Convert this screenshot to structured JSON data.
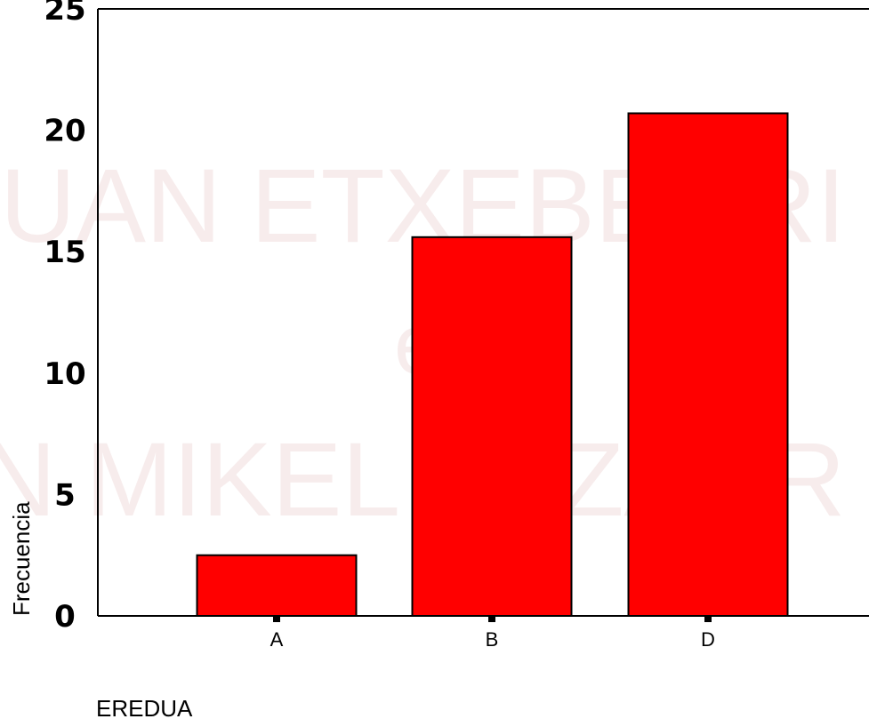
{
  "chart_data": {
    "type": "bar",
    "title": "",
    "xlabel": "EREDUA",
    "ylabel": "Frecuencia",
    "categories": [
      "A",
      "B",
      "D"
    ],
    "values": [
      2.5,
      15.6,
      20.7
    ],
    "ylim": [
      0,
      25
    ],
    "yticks": [
      0,
      5,
      10,
      15,
      20,
      25
    ],
    "grid": false,
    "colors": {
      "bar": "#ff0000",
      "bar_edge": "#000000"
    }
  },
  "watermark": {
    "line1": "UAN ETXEBERRI",
    "line2": "eta",
    "line3": "N MIKEL LUZARR"
  }
}
